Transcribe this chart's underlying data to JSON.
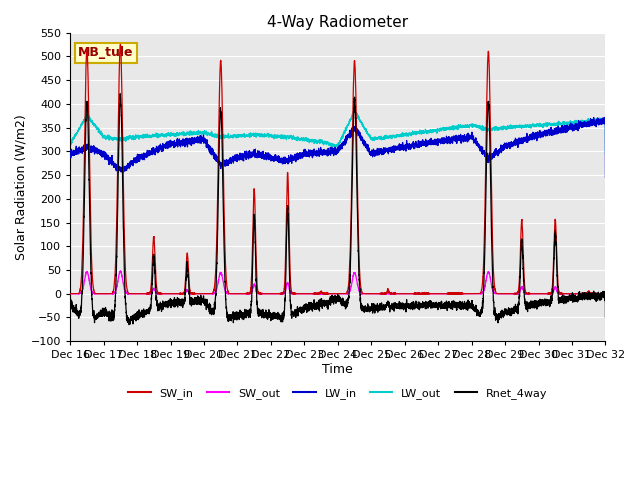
{
  "title": "4-Way Radiometer",
  "xlabel": "Time",
  "ylabel": "Solar Radiation (W/m2)",
  "ylim": [
    -100,
    550
  ],
  "yticks": [
    -100,
    -50,
    0,
    50,
    100,
    150,
    200,
    250,
    300,
    350,
    400,
    450,
    500,
    550
  ],
  "n_days": 16,
  "start_day": 16,
  "background_color": "#e8e8e8",
  "label_box": "MB_tule",
  "series_colors": {
    "SW_in": "#cc0000",
    "SW_out": "#ff00ff",
    "LW_in": "#0000cc",
    "LW_out": "#00cccc",
    "Rnet_4way": "#000000"
  },
  "legend_labels": [
    "SW_in",
    "SW_out",
    "LW_in",
    "LW_out",
    "Rnet_4way"
  ],
  "sw_peaks": {
    "days": [
      0,
      1,
      4,
      5,
      6,
      7,
      8,
      9,
      12,
      13,
      14,
      15
    ],
    "vals": [
      515,
      525,
      490,
      220,
      255,
      5,
      490,
      10,
      510,
      155,
      155,
      5
    ],
    "widths": [
      0.07,
      0.07,
      0.07,
      0.04,
      0.04,
      0.02,
      0.07,
      0.02,
      0.07,
      0.04,
      0.04,
      0.02
    ]
  }
}
